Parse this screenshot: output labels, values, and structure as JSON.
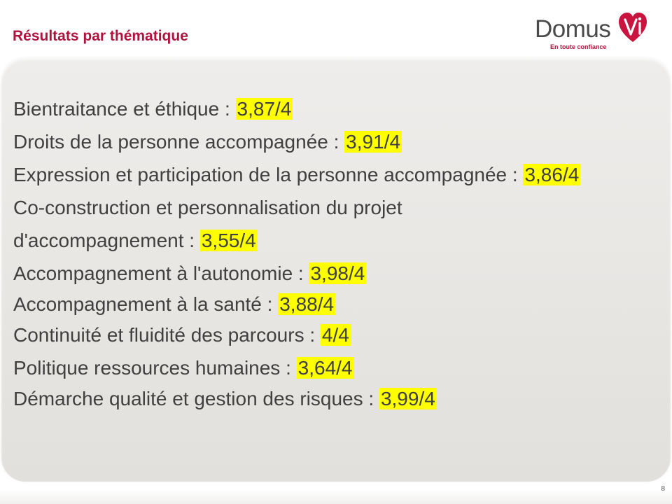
{
  "header": {
    "title": "Résultats par thématique"
  },
  "logo": {
    "wordmark": "Domus",
    "tagline": "En toute confiance",
    "heart_color": "#c8143f",
    "icon": "heart-vi-icon"
  },
  "results": [
    {
      "label": "Bientraitance et éthique : ",
      "score": "3,87/4"
    },
    {
      "label": "Droits de la personne accompagnée : ",
      "score": "3,91/4"
    },
    {
      "label": "Expression et participation de la personne accompagnée : ",
      "score": "3,86/4"
    },
    {
      "label_line1": "Co-construction et personnalisation du projet",
      "label_line2": "d'accompagnement : ",
      "score": "3,55/4"
    },
    {
      "label": "Accompagnement à l'autonomie : ",
      "score": "3,98/4"
    },
    {
      "label": "Accompagnement à la santé : ",
      "score": "3,88/4"
    },
    {
      "label": "Continuité et fluidité des parcours : ",
      "score": "4/4"
    },
    {
      "label": "Politique ressources humaines : ",
      "score": "3,64/4"
    },
    {
      "label": "Démarche qualité et gestion des risques : ",
      "score": "3,99/4"
    }
  ],
  "footer": {
    "page_number": "8"
  },
  "colors": {
    "title": "#b0123e",
    "highlight": "#ffff00",
    "text": "#404040"
  }
}
